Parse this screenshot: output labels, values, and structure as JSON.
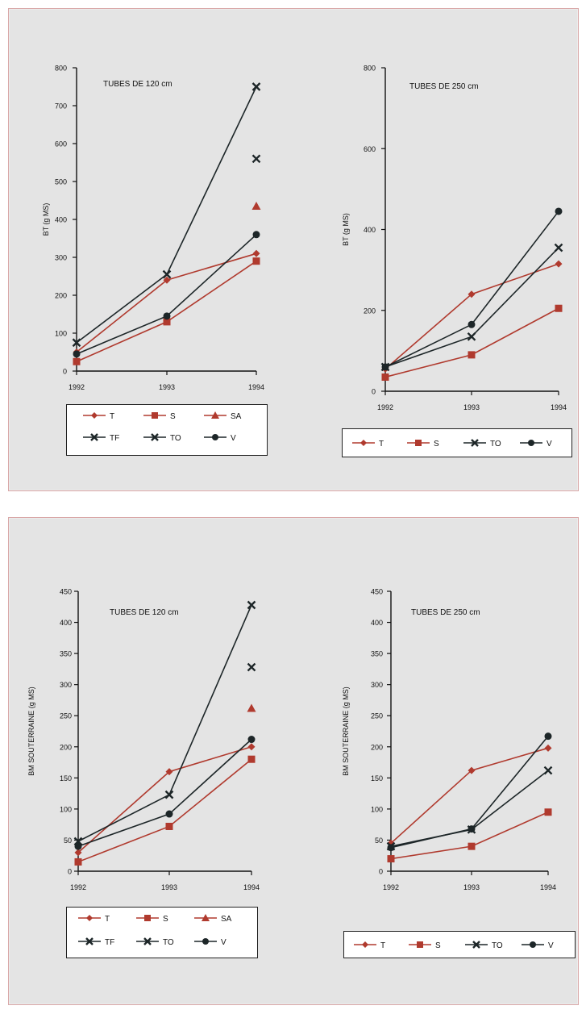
{
  "colors": {
    "red": "#b03a2e",
    "black": "#1d2628"
  },
  "chart_data": [
    {
      "type": "line",
      "title": "TUBES DE 120 cm",
      "ylabel": "BT (g MS)",
      "xlabel": "",
      "categories": [
        "1992",
        "1993",
        "1994"
      ],
      "ylim": [
        0,
        800
      ],
      "yticks": [
        0,
        100,
        200,
        300,
        400,
        500,
        600,
        700,
        800
      ],
      "series": [
        {
          "name": "T",
          "values": [
            50,
            240,
            310
          ],
          "marker": "diamond",
          "color": "red"
        },
        {
          "name": "S",
          "values": [
            25,
            130,
            290
          ],
          "marker": "square",
          "color": "red"
        },
        {
          "name": "SA",
          "values": [
            null,
            null,
            435
          ],
          "marker": "triangle",
          "color": "red"
        },
        {
          "name": "TF",
          "values": [
            75,
            255,
            750
          ],
          "marker": "x",
          "color": "black"
        },
        {
          "name": "TO",
          "values": [
            null,
            null,
            560
          ],
          "marker": "x",
          "color": "black"
        },
        {
          "name": "V",
          "values": [
            45,
            145,
            360
          ],
          "marker": "circle",
          "color": "black"
        }
      ],
      "legend_rows": [
        [
          "T",
          "S",
          "SA"
        ],
        [
          "TF",
          "TO",
          "V"
        ]
      ]
    },
    {
      "type": "line",
      "title": "TUBES DE 250 cm",
      "ylabel": "BT (g MS)",
      "xlabel": "",
      "categories": [
        "1992",
        "1993",
        "1994"
      ],
      "ylim": [
        0,
        800
      ],
      "yticks": [
        0,
        200,
        400,
        600,
        800
      ],
      "series": [
        {
          "name": "T",
          "values": [
            55,
            240,
            315
          ],
          "marker": "diamond",
          "color": "red"
        },
        {
          "name": "S",
          "values": [
            35,
            90,
            205
          ],
          "marker": "square",
          "color": "red"
        },
        {
          "name": "TO",
          "values": [
            60,
            135,
            355
          ],
          "marker": "x",
          "color": "black"
        },
        {
          "name": "V",
          "values": [
            60,
            165,
            445
          ],
          "marker": "circle",
          "color": "black"
        }
      ],
      "legend_rows": [
        [
          "T",
          "S",
          "TO",
          "V"
        ]
      ]
    },
    {
      "type": "line",
      "title": "TUBES DE 120 cm",
      "ylabel": "BM SOUTERRAINE (g MS)",
      "xlabel": "",
      "categories": [
        "1992",
        "1993",
        "1994"
      ],
      "ylim": [
        0,
        450
      ],
      "yticks": [
        0,
        50,
        100,
        150,
        200,
        250,
        300,
        350,
        400,
        450
      ],
      "series": [
        {
          "name": "T",
          "values": [
            30,
            160,
            200
          ],
          "marker": "diamond",
          "color": "red"
        },
        {
          "name": "S",
          "values": [
            15,
            72,
            180
          ],
          "marker": "square",
          "color": "red"
        },
        {
          "name": "SA",
          "values": [
            null,
            null,
            262
          ],
          "marker": "triangle",
          "color": "red"
        },
        {
          "name": "TF",
          "values": [
            48,
            123,
            428
          ],
          "marker": "x",
          "color": "black"
        },
        {
          "name": "TO",
          "values": [
            null,
            null,
            328
          ],
          "marker": "x",
          "color": "black"
        },
        {
          "name": "V",
          "values": [
            40,
            92,
            212
          ],
          "marker": "circle",
          "color": "black"
        }
      ],
      "legend_rows": [
        [
          "T",
          "S",
          "SA"
        ],
        [
          "TF",
          "TO",
          "V"
        ]
      ]
    },
    {
      "type": "line",
      "title": "TUBES DE 250 cm",
      "ylabel": "BM SOUTERRAINE (g MS)",
      "xlabel": "",
      "categories": [
        "1992",
        "1993",
        "1994"
      ],
      "ylim": [
        0,
        450
      ],
      "yticks": [
        0,
        50,
        100,
        150,
        200,
        250,
        300,
        350,
        400,
        450
      ],
      "series": [
        {
          "name": "T",
          "values": [
            45,
            162,
            198
          ],
          "marker": "diamond",
          "color": "red"
        },
        {
          "name": "S",
          "values": [
            20,
            40,
            95
          ],
          "marker": "square",
          "color": "red"
        },
        {
          "name": "TO",
          "values": [
            40,
            67,
            162
          ],
          "marker": "x",
          "color": "black"
        },
        {
          "name": "V",
          "values": [
            38,
            68,
            217
          ],
          "marker": "circle",
          "color": "black"
        }
      ],
      "legend_rows": [
        [
          "T",
          "S",
          "TO",
          "V"
        ]
      ]
    }
  ]
}
